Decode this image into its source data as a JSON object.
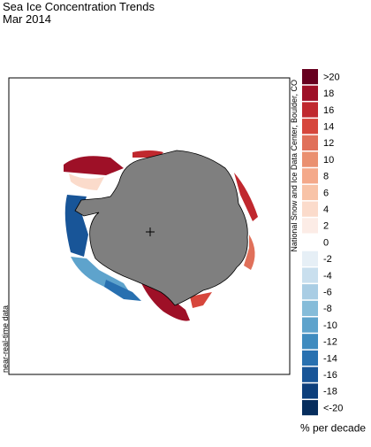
{
  "header": {
    "title": "Sea Ice Concentration Trends",
    "subtitle": "Mar 2014"
  },
  "map": {
    "credit": "National Snow and Ice Data Center, Boulder, CO",
    "note": "near-real-time data"
  },
  "legend": {
    "unit": "% per decade",
    "items": [
      {
        "label": ">20",
        "color": "#67001f"
      },
      {
        "label": "18",
        "color": "#9e1027"
      },
      {
        "label": "16",
        "color": "#c0282e"
      },
      {
        "label": "14",
        "color": "#d6463c"
      },
      {
        "label": "12",
        "color": "#e0705a"
      },
      {
        "label": "10",
        "color": "#ea9070"
      },
      {
        "label": "8",
        "color": "#f4a98a"
      },
      {
        "label": "6",
        "color": "#f8c3a7"
      },
      {
        "label": "4",
        "color": "#fbdbcb"
      },
      {
        "label": "2",
        "color": "#fcece6"
      },
      {
        "label": "0",
        "color": "#ffffff"
      },
      {
        "label": "-2",
        "color": "#e6eff6"
      },
      {
        "label": "-4",
        "color": "#c9dfee"
      },
      {
        "label": "-6",
        "color": "#a9cde4"
      },
      {
        "label": "-8",
        "color": "#85bcd9"
      },
      {
        "label": "-10",
        "color": "#5ea3cc"
      },
      {
        "label": "-12",
        "color": "#3f8bbf"
      },
      {
        "label": "-14",
        "color": "#2870b0"
      },
      {
        "label": "-16",
        "color": "#185598"
      },
      {
        "label": "-18",
        "color": "#0d3f7c"
      },
      {
        "label": "<-20",
        "color": "#062d5d"
      }
    ]
  }
}
